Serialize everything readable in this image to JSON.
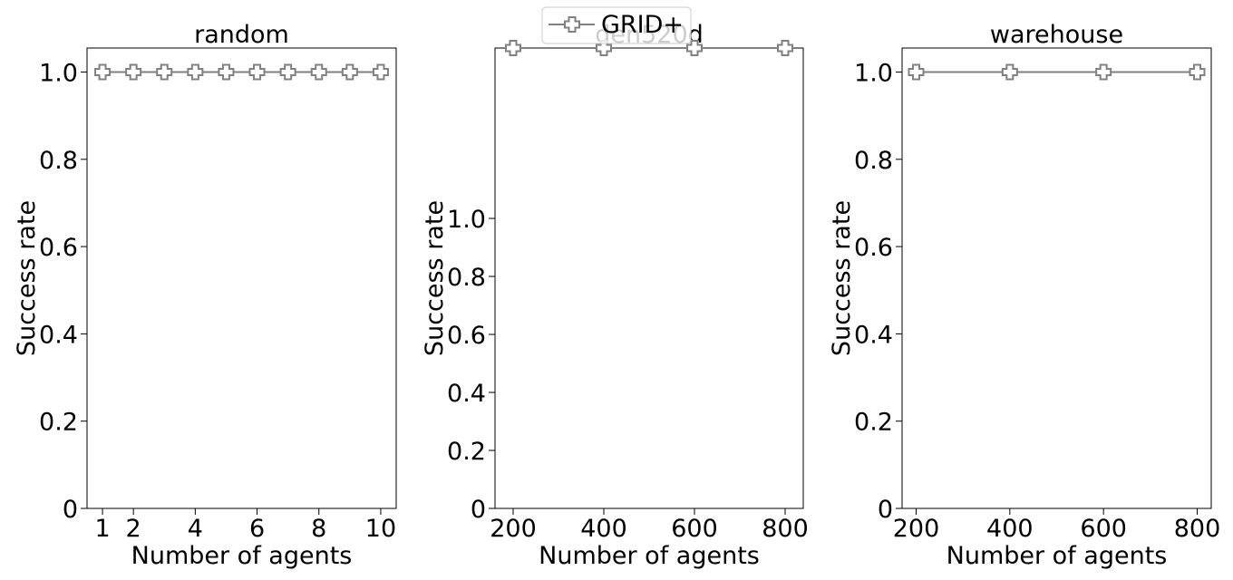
{
  "legend": {
    "label": "GRID+",
    "placement": "top-center"
  },
  "chart_data": [
    {
      "type": "line",
      "title": "random",
      "xlabel": "Number of agents",
      "ylabel": "Success rate",
      "xlim": [
        0.5,
        10.5
      ],
      "ylim": [
        0,
        1.055
      ],
      "xticks": [
        1,
        2,
        4,
        6,
        8,
        10
      ],
      "xtick_labels": [
        "1",
        "2",
        "4",
        "6",
        "8",
        "10"
      ],
      "yticks": [
        0,
        0.2,
        0.4,
        0.6,
        0.8,
        1.0
      ],
      "ytick_labels": [
        "0",
        "0.2",
        "0.4",
        "0.6",
        "0.8",
        "1.0"
      ],
      "series": [
        {
          "name": "GRID+",
          "color": "#808080",
          "marker": "plus-outline",
          "x": [
            1,
            2,
            3,
            4,
            5,
            6,
            7,
            8,
            9,
            10
          ],
          "y": [
            1.0,
            1.0,
            1.0,
            1.0,
            1.0,
            1.0,
            1.0,
            1.0,
            1.0,
            1.0
          ]
        }
      ]
    },
    {
      "type": "line",
      "title": "den520d",
      "xlabel": "Number of agents",
      "ylabel": "Success rate",
      "xlim": [
        160,
        840
      ],
      "ylim": [
        0,
        1.0
      ],
      "xticks": [
        200,
        400,
        600,
        800
      ],
      "xtick_labels": [
        "200",
        "400",
        "600",
        "800"
      ],
      "yticks": [
        0,
        0.2,
        0.4,
        0.6,
        0.8,
        1.0
      ],
      "ytick_labels": [
        "0",
        "0.2",
        "0.4",
        "0.6",
        "0.8",
        "1.0"
      ],
      "yticks_note": "tick label positions are not linear",
      "series": [
        {
          "name": "GRID+",
          "color": "#808080",
          "marker": "plus-outline",
          "x": [
            200,
            400,
            600,
            800
          ],
          "y": [
            1.0,
            1.0,
            1.0,
            1.0
          ]
        }
      ]
    },
    {
      "type": "line",
      "title": "warehouse",
      "xlabel": "Number of agents",
      "ylabel": "Success rate",
      "xlim": [
        170,
        830
      ],
      "ylim": [
        0,
        1.055
      ],
      "xticks": [
        200,
        400,
        600,
        800
      ],
      "xtick_labels": [
        "200",
        "400",
        "600",
        "800"
      ],
      "yticks": [
        0,
        0.2,
        0.4,
        0.6,
        0.8,
        1.0
      ],
      "ytick_labels": [
        "0",
        "0.2",
        "0.4",
        "0.6",
        "0.8",
        "1.0"
      ],
      "series": [
        {
          "name": "GRID+",
          "color": "#808080",
          "marker": "plus-outline",
          "x": [
            200,
            400,
            600,
            800
          ],
          "y": [
            1.0,
            1.0,
            1.0,
            1.0
          ]
        }
      ]
    }
  ]
}
